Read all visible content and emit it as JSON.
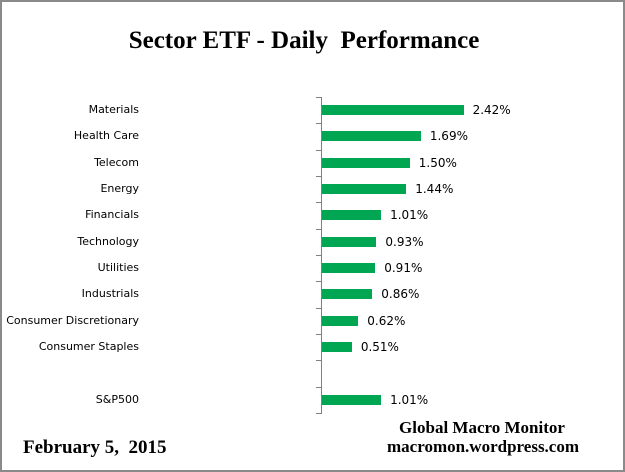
{
  "chart_data": {
    "type": "bar",
    "orientation": "horizontal",
    "title": "Sector ETF - Daily  Performance",
    "categories": [
      "Materials",
      "Health Care",
      "Telecom",
      "Energy",
      "Financials",
      "Technology",
      "Utilities",
      "Industrials",
      "Consumer Discretionary",
      "Consumer Staples",
      "",
      "S&P500"
    ],
    "values": [
      2.42,
      1.69,
      1.5,
      1.44,
      1.01,
      0.93,
      0.91,
      0.86,
      0.62,
      0.51,
      null,
      1.01
    ],
    "value_labels": [
      "2.42%",
      "1.69%",
      "1.50%",
      "1.44%",
      "1.01%",
      "0.93%",
      "0.91%",
      "0.86%",
      "0.62%",
      "0.51%",
      "",
      "1.01%"
    ],
    "value_suffix": "%",
    "bar_color": "#00A651",
    "axis_color": "#808080",
    "grid": false,
    "legend": "none",
    "value_axis_tick_labels_visible": false,
    "baseline_value": 0
  },
  "footer": {
    "date": "February 5,  2015",
    "attribution_line1": "Global Macro Monitor",
    "attribution_line2": "macromon.wordpress.com"
  }
}
